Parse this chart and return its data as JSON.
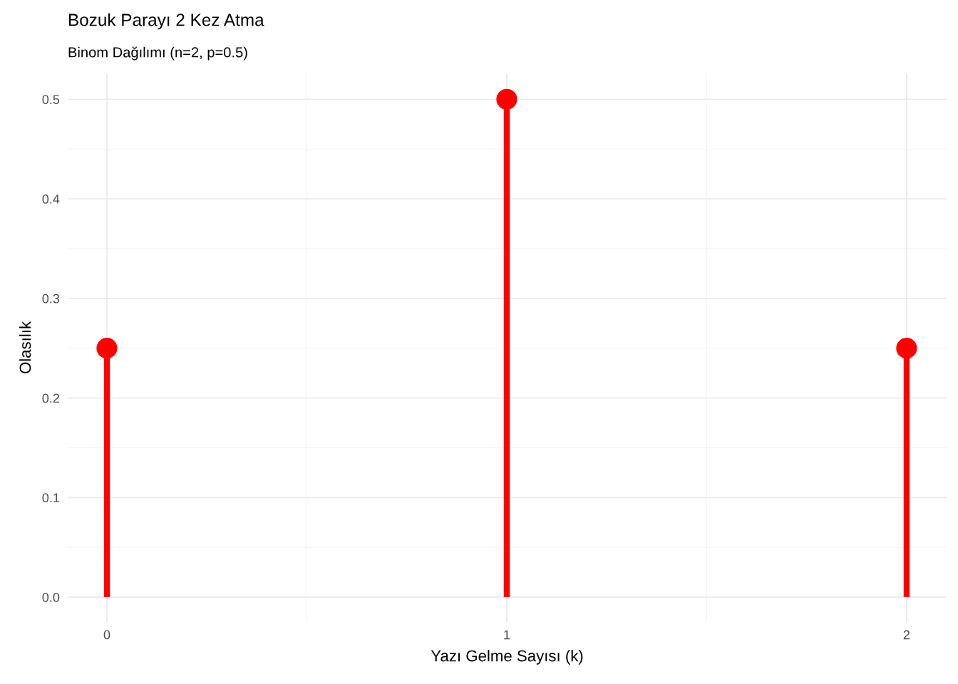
{
  "chart_data": {
    "type": "lollipop",
    "title": "Bozuk Parayı 2 Kez Atma",
    "subtitle": "Binom Dağılımı (n=2, p=0.5)",
    "xlabel": "Yazı Gelme Sayısı (k)",
    "ylabel": "Olasılık",
    "x": [
      0,
      1,
      2
    ],
    "values": [
      0.25,
      0.5,
      0.25
    ],
    "color": "#ff0000",
    "xlim": [
      -0.098,
      2.1
    ],
    "xticks": [
      0,
      1,
      2
    ],
    "ylim": [
      -0.025,
      0.526
    ],
    "yticks": [
      {
        "value": 0,
        "label": "0.0"
      },
      0.1,
      0.2,
      0.3,
      0.4,
      0.5
    ],
    "grid": true,
    "marker": "circle"
  }
}
